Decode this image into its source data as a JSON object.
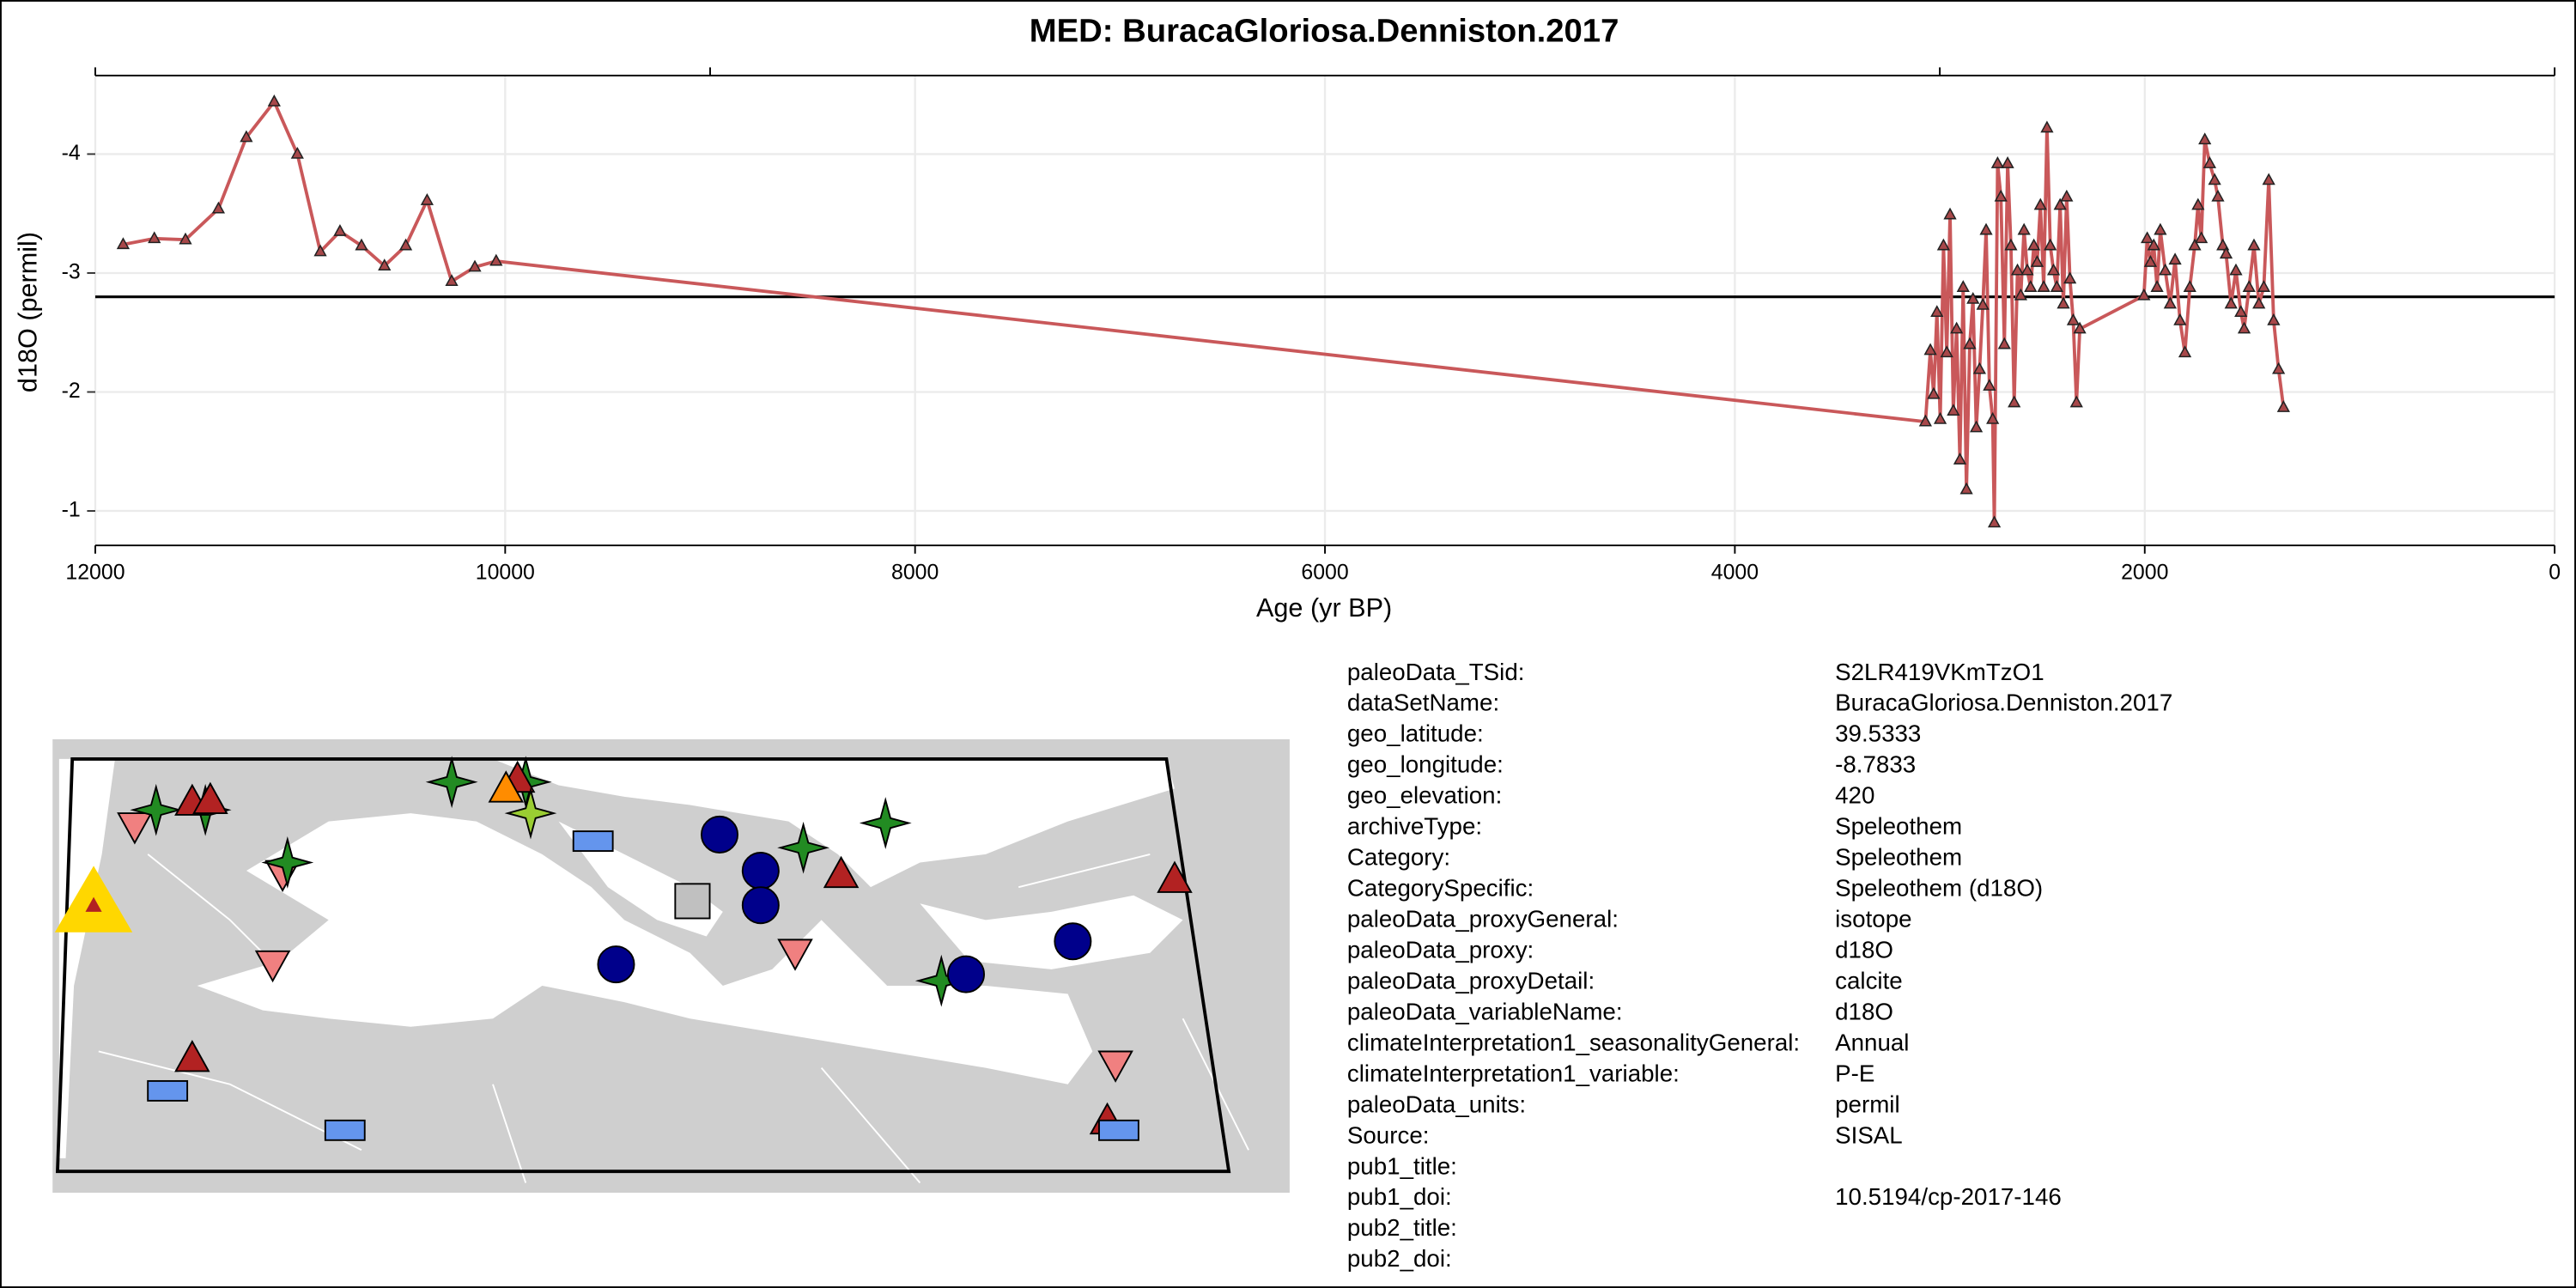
{
  "chart_data": {
    "type": "line",
    "title": "MED: BuracaGloriosa.Denniston.2017",
    "x_label": "Age (yr BP)",
    "y_label": "d18O (permil)",
    "xlim": [
      12000,
      0
    ],
    "ylim": [
      -0.71,
      -4.66
    ],
    "xticks": [
      12000,
      10000,
      8000,
      6000,
      4000,
      2000,
      0
    ],
    "top_ticks": [
      12000,
      9000,
      3000,
      0
    ],
    "yticks": [
      -4,
      -3,
      -2,
      -1
    ],
    "grid": true,
    "hline": -2.8,
    "color": "#c9585a",
    "marker_color": "#a8484a",
    "x": [
      11864,
      11712,
      11560,
      11399,
      11263,
      11127,
      11014,
      10902,
      10806,
      10701,
      10589,
      10485,
      10381,
      10261,
      10148,
      10044,
      3070,
      3046,
      3030,
      3014,
      2998,
      2982,
      2966,
      2950,
      2934,
      2918,
      2902,
      2886,
      2870,
      2854,
      2838,
      2822,
      2806,
      2790,
      2774,
      2758,
      2742,
      2734,
      2718,
      2702,
      2685,
      2669,
      2653,
      2637,
      2621,
      2605,
      2589,
      2573,
      2557,
      2541,
      2525,
      2509,
      2493,
      2477,
      2461,
      2445,
      2429,
      2413,
      2397,
      2381,
      2365,
      2349,
      2333,
      2317,
      2004,
      1988,
      1972,
      1956,
      1940,
      1924,
      1900,
      1876,
      1852,
      1828,
      1804,
      1780,
      1756,
      1740,
      1724,
      1707,
      1683,
      1659,
      1643,
      1619,
      1603,
      1579,
      1555,
      1531,
      1515,
      1491,
      1467,
      1443,
      1419,
      1395,
      1371,
      1347,
      1323
    ],
    "values": [
      -3.24,
      -3.29,
      -3.28,
      -3.54,
      -4.14,
      -4.44,
      -4.0,
      -3.18,
      -3.35,
      -3.23,
      -3.06,
      -3.23,
      -3.61,
      -2.93,
      -3.05,
      -3.1,
      -1.75,
      -2.35,
      -1.98,
      -2.67,
      -1.77,
      -3.23,
      -2.33,
      -3.49,
      -1.84,
      -2.53,
      -1.43,
      -2.88,
      -1.18,
      -2.4,
      -2.78,
      -1.7,
      -2.19,
      -2.73,
      -3.36,
      -2.05,
      -1.77,
      -0.9,
      -3.92,
      -3.64,
      -2.4,
      -3.92,
      -3.23,
      -1.91,
      -3.02,
      -2.81,
      -3.36,
      -3.02,
      -2.88,
      -3.23,
      -3.09,
      -3.57,
      -2.88,
      -4.22,
      -3.23,
      -3.02,
      -2.88,
      -3.57,
      -2.74,
      -3.64,
      -2.95,
      -2.6,
      -1.91,
      -2.53,
      -2.81,
      -3.29,
      -3.09,
      -3.23,
      -2.88,
      -3.36,
      -3.02,
      -2.74,
      -3.11,
      -2.6,
      -2.33,
      -2.88,
      -3.23,
      -3.57,
      -3.29,
      -4.12,
      -3.92,
      -3.78,
      -3.64,
      -3.23,
      -3.16,
      -2.74,
      -3.02,
      -2.67,
      -2.53,
      -2.88,
      -3.23,
      -2.74,
      -2.88,
      -3.78,
      -2.6,
      -2.19,
      -1.87
    ]
  },
  "metadata": {
    "rows": [
      [
        "paleoData_TSid:",
        "S2LR419VKmTzO1"
      ],
      [
        "dataSetName:",
        "BuracaGloriosa.Denniston.2017"
      ],
      [
        "geo_latitude:",
        "39.5333"
      ],
      [
        "geo_longitude:",
        "-8.7833"
      ],
      [
        "geo_elevation:",
        "420"
      ],
      [
        "archiveType:",
        "Speleothem"
      ],
      [
        "Category:",
        "Speleothem"
      ],
      [
        "CategorySpecific:",
        "Speleothem (d18O)"
      ],
      [
        "paleoData_proxyGeneral:",
        "isotope"
      ],
      [
        "paleoData_proxy:",
        "d18O"
      ],
      [
        "paleoData_proxyDetail:",
        "calcite"
      ],
      [
        "paleoData_variableName:",
        "d18O"
      ],
      [
        "climateInterpretation1_seasonalityGeneral:",
        "Annual"
      ],
      [
        "climateInterpretation1_variable:",
        "P-E"
      ],
      [
        "paleoData_units:",
        "permil"
      ],
      [
        "Source:",
        "SISAL"
      ],
      [
        "pub1_title:"
      ],
      [
        "pub1_doi:",
        "10.5194/cp-2017-146"
      ],
      [
        "pub2_title:"
      ],
      [
        "pub2_doi:"
      ]
    ]
  }
}
